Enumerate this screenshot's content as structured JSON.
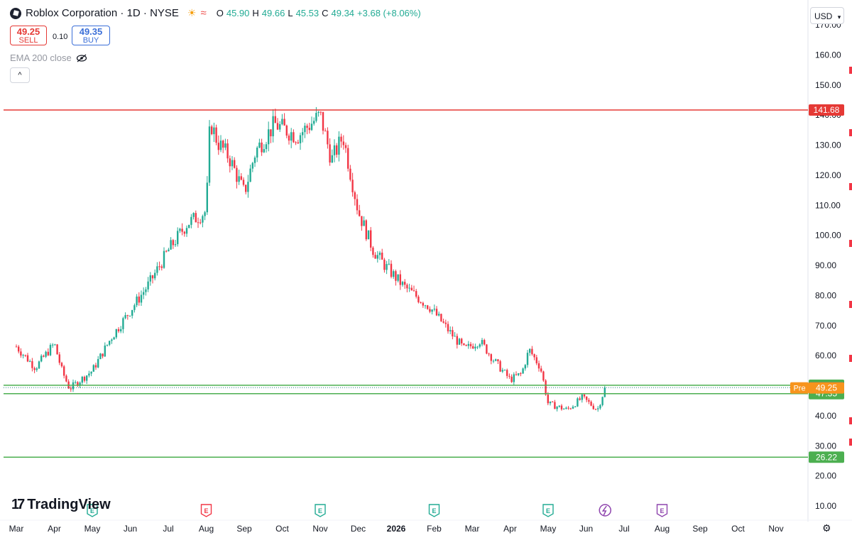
{
  "header": {
    "symbol_title": "Roblox Corporation · 1D · NYSE",
    "ohlc": [
      {
        "k": "O",
        "v": "45.90"
      },
      {
        "k": "H",
        "v": "49.66"
      },
      {
        "k": "L",
        "v": "45.53"
      },
      {
        "k": "C",
        "v": "49.34"
      }
    ],
    "change": "+3.68 (+8.06%)",
    "sell_price": "49.25",
    "sell_label": "SELL",
    "spread": "0.10",
    "buy_price": "49.35",
    "buy_label": "BUY",
    "indicator": "EMA 200 close",
    "collapse_glyph": "^",
    "currency": "USD"
  },
  "footer": {
    "brand": "TradingView",
    "brand_mark": "17"
  },
  "colors": {
    "up": "#22ab94",
    "down": "#f23645",
    "hline_red": "#e53935",
    "hline_green": "#4caf50",
    "pre": "#f7941d",
    "last": "#2f7c86"
  },
  "chart_data": {
    "type": "candlestick",
    "y_ticks": [
      10,
      20,
      30,
      40,
      50,
      60,
      70,
      80,
      90,
      100,
      110,
      120,
      130,
      140,
      150,
      160,
      170
    ],
    "ylim": [
      10,
      172
    ],
    "x_labels": [
      "Mar",
      "Apr",
      "May",
      "Jun",
      "Jul",
      "Aug",
      "Sep",
      "Oct",
      "Nov",
      "Dec",
      "2026",
      "Feb",
      "Mar",
      "Apr",
      "May",
      "Jun",
      "Jul",
      "Aug",
      "Sep",
      "Oct",
      "Nov"
    ],
    "horizontal_lines": [
      {
        "price": 141.68,
        "label": "141.68",
        "color": "red"
      },
      {
        "price": 50.16,
        "label": "50.16",
        "color": "green"
      },
      {
        "price": 47.35,
        "label": "47.35",
        "color": "green"
      },
      {
        "price": 26.22,
        "label": "26.22",
        "color": "green"
      }
    ],
    "price_tags": [
      {
        "price": 49.34,
        "label": "49.34",
        "kind": "last"
      },
      {
        "price": 49.25,
        "label": "49.25",
        "kind": "pre",
        "prefix": "Pre"
      }
    ],
    "earnings_markers": [
      {
        "month_index": 2,
        "color": "green"
      },
      {
        "month_index": 5,
        "color": "red"
      },
      {
        "month_index": 8,
        "color": "green"
      },
      {
        "month_index": 11,
        "color": "green"
      },
      {
        "month_index": 14,
        "color": "green"
      },
      {
        "month_index": 15.5,
        "color": "purple",
        "kind": "upcoming"
      },
      {
        "month_index": 17,
        "color": "purple"
      }
    ],
    "price_path": [
      [
        0,
        63
      ],
      [
        0.5,
        56
      ],
      [
        1,
        64
      ],
      [
        1.2,
        55
      ],
      [
        1.4,
        49
      ],
      [
        2,
        55
      ],
      [
        2.5,
        66
      ],
      [
        3,
        75
      ],
      [
        3.5,
        84
      ],
      [
        4,
        95
      ],
      [
        4.5,
        104
      ],
      [
        5,
        108
      ],
      [
        5.1,
        138
      ],
      [
        5.3,
        131
      ],
      [
        5.6,
        126
      ],
      [
        6,
        114
      ],
      [
        6.3,
        128
      ],
      [
        6.8,
        137
      ],
      [
        7.4,
        133
      ],
      [
        8,
        140
      ],
      [
        8.3,
        125
      ],
      [
        8.6,
        133
      ],
      [
        9,
        108
      ],
      [
        9.4,
        95
      ],
      [
        9.7,
        90
      ],
      [
        10.2,
        83
      ],
      [
        10.5,
        80
      ],
      [
        10.9,
        76
      ],
      [
        11.4,
        68
      ],
      [
        11.8,
        62
      ],
      [
        12.2,
        65
      ],
      [
        12.6,
        58
      ],
      [
        13,
        52
      ],
      [
        13.3,
        54
      ],
      [
        13.5,
        62
      ],
      [
        13.8,
        56
      ],
      [
        14,
        44
      ],
      [
        14.5,
        42
      ],
      [
        14.9,
        46
      ],
      [
        15.3,
        42
      ],
      [
        15.5,
        49.34
      ]
    ]
  }
}
